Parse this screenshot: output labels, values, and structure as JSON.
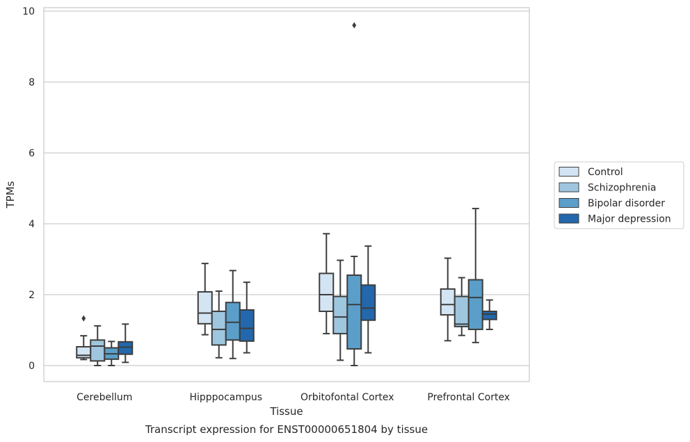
{
  "chart_data": {
    "type": "box",
    "title": "",
    "caption": "Transcript expression for ENST00000651804 by tissue",
    "xlabel": "Tissue",
    "ylabel": "TPMs",
    "ylim": [
      -0.45,
      10.1
    ],
    "yticks": [
      0,
      2,
      4,
      6,
      8,
      10
    ],
    "grid": "horizontal",
    "legend_position": "right",
    "categories": [
      "Cerebellum",
      "Hipppocampus",
      "Orbitofontal Cortex",
      "Prefrontal Cortex"
    ],
    "series": [
      {
        "name": "Control",
        "color": "#d3e4f3",
        "boxes": [
          {
            "whisker_low": 0.17,
            "q1": 0.22,
            "median": 0.29,
            "q3": 0.53,
            "whisker_high": 0.84,
            "outliers": [
              1.33
            ]
          },
          {
            "whisker_low": 0.87,
            "q1": 1.18,
            "median": 1.48,
            "q3": 2.08,
            "whisker_high": 2.88,
            "outliers": []
          },
          {
            "whisker_low": 0.9,
            "q1": 1.53,
            "median": 2.0,
            "q3": 2.6,
            "whisker_high": 3.72,
            "outliers": []
          },
          {
            "whisker_low": 0.7,
            "q1": 1.43,
            "median": 1.72,
            "q3": 2.16,
            "whisker_high": 3.03,
            "outliers": []
          }
        ]
      },
      {
        "name": "Schizophrenia",
        "color": "#9fc6df",
        "boxes": [
          {
            "whisker_low": 0.0,
            "q1": 0.13,
            "median": 0.55,
            "q3": 0.72,
            "whisker_high": 1.12,
            "outliers": []
          },
          {
            "whisker_low": 0.22,
            "q1": 0.58,
            "median": 1.02,
            "q3": 1.53,
            "whisker_high": 2.1,
            "outliers": []
          },
          {
            "whisker_low": 0.15,
            "q1": 0.9,
            "median": 1.37,
            "q3": 1.95,
            "whisker_high": 2.97,
            "outliers": []
          },
          {
            "whisker_low": 0.85,
            "q1": 1.1,
            "median": 1.17,
            "q3": 1.95,
            "whisker_high": 2.48,
            "outliers": []
          }
        ]
      },
      {
        "name": "Bipolar disorder",
        "color": "#5a9ec9",
        "boxes": [
          {
            "whisker_low": 0.0,
            "q1": 0.18,
            "median": 0.33,
            "q3": 0.5,
            "whisker_high": 0.68,
            "outliers": []
          },
          {
            "whisker_low": 0.2,
            "q1": 0.72,
            "median": 1.22,
            "q3": 1.78,
            "whisker_high": 2.68,
            "outliers": []
          },
          {
            "whisker_low": 0.0,
            "q1": 0.47,
            "median": 1.72,
            "q3": 2.55,
            "whisker_high": 3.08,
            "outliers": [
              9.6
            ]
          },
          {
            "whisker_low": 0.65,
            "q1": 1.02,
            "median": 1.92,
            "q3": 2.42,
            "whisker_high": 4.43,
            "outliers": []
          }
        ]
      },
      {
        "name": "Major depression",
        "color": "#2367ac",
        "boxes": [
          {
            "whisker_low": 0.09,
            "q1": 0.32,
            "median": 0.52,
            "q3": 0.67,
            "whisker_high": 1.17,
            "outliers": []
          },
          {
            "whisker_low": 0.36,
            "q1": 0.69,
            "median": 1.05,
            "q3": 1.57,
            "whisker_high": 2.35,
            "outliers": []
          },
          {
            "whisker_low": 0.36,
            "q1": 1.28,
            "median": 1.62,
            "q3": 2.27,
            "whisker_high": 3.37,
            "outliers": []
          },
          {
            "whisker_low": 1.02,
            "q1": 1.3,
            "median": 1.45,
            "q3": 1.53,
            "whisker_high": 1.85,
            "outliers": []
          }
        ]
      }
    ]
  }
}
